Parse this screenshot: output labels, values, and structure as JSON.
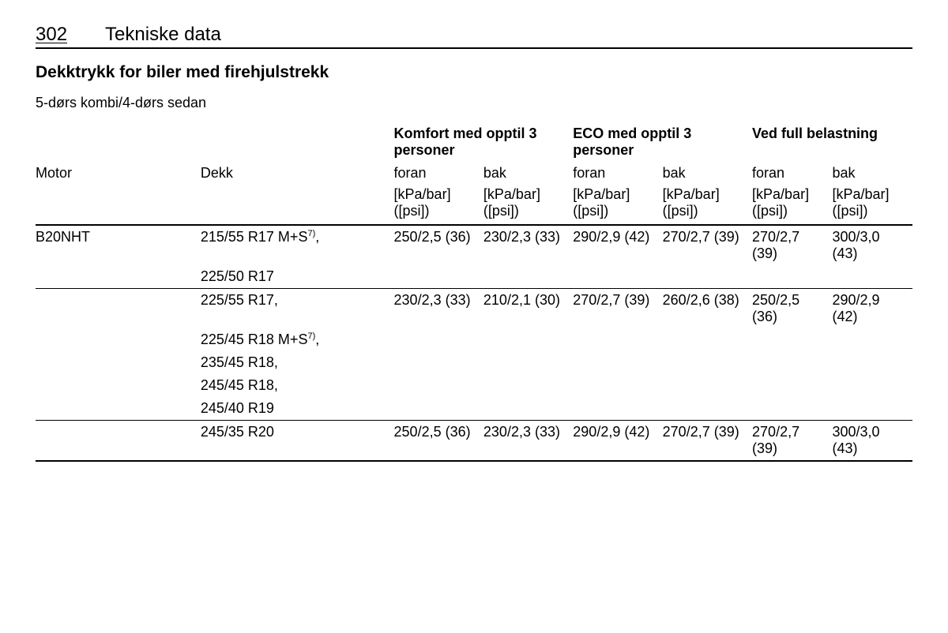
{
  "page": {
    "number": "302",
    "chapter": "Tekniske data",
    "section_title": "Dekktrykk for biler med firehjulstrekk",
    "subsection_title": "5-dørs kombi/4-dørs sedan"
  },
  "table": {
    "group_headers": {
      "motor": "Motor",
      "tyre": "Dekk",
      "comfort": "Komfort med opptil 3 personer",
      "eco": "ECO med opptil 3 personer",
      "full": "Ved full belastning"
    },
    "sub_headers": {
      "front": "foran",
      "rear": "bak"
    },
    "unit": "[kPa/bar] ([psi])",
    "rows": [
      {
        "motor": "B20NHT",
        "tyre": "215/55 R17 M+S",
        "tyre_sup": "7)",
        "tyre_tail": ",",
        "vals": [
          "250/2,5 (36)",
          "230/2,3 (33)",
          "290/2,9 (42)",
          "270/2,7 (39)",
          "270/2,7 (39)",
          "300/3,0 (43)"
        ]
      },
      {
        "motor": "",
        "tyre": "225/50 R17",
        "tyre_sup": "",
        "tyre_tail": "",
        "vals": [
          "",
          "",
          "",
          "",
          "",
          ""
        ]
      },
      {
        "motor": "",
        "tyre": "225/55 R17,",
        "tyre_sup": "",
        "tyre_tail": "",
        "vals": [
          "230/2,3 (33)",
          "210/2,1 (30)",
          "270/2,7 (39)",
          "260/2,6 (38)",
          "250/2,5 (36)",
          "290/2,9 (42)"
        ]
      },
      {
        "motor": "",
        "tyre": "225/45 R18 M+S",
        "tyre_sup": "7)",
        "tyre_tail": ",",
        "vals": [
          "",
          "",
          "",
          "",
          "",
          ""
        ]
      },
      {
        "motor": "",
        "tyre": "235/45 R18,",
        "tyre_sup": "",
        "tyre_tail": "",
        "vals": [
          "",
          "",
          "",
          "",
          "",
          ""
        ]
      },
      {
        "motor": "",
        "tyre": "245/45 R18,",
        "tyre_sup": "",
        "tyre_tail": "",
        "vals": [
          "",
          "",
          "",
          "",
          "",
          ""
        ]
      },
      {
        "motor": "",
        "tyre": "245/40 R19",
        "tyre_sup": "",
        "tyre_tail": "",
        "vals": [
          "",
          "",
          "",
          "",
          "",
          ""
        ]
      },
      {
        "motor": "",
        "tyre": "245/35 R20",
        "tyre_sup": "",
        "tyre_tail": "",
        "vals": [
          "250/2,5 (36)",
          "230/2,3 (33)",
          "290/2,9 (42)",
          "270/2,7 (39)",
          "270/2,7 (39)",
          "300/3,0 (43)"
        ]
      }
    ]
  },
  "colors": {
    "text": "#000000",
    "background": "#ffffff",
    "border": "#000000"
  }
}
